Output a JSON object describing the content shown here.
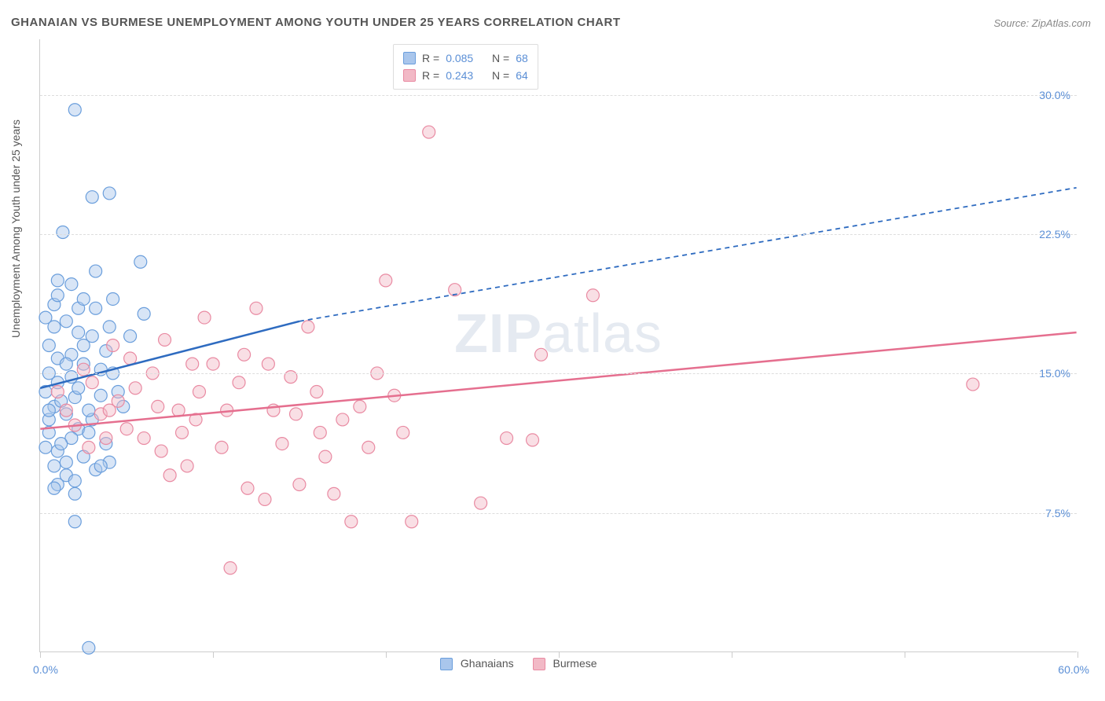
{
  "title": "GHANAIAN VS BURMESE UNEMPLOYMENT AMONG YOUTH UNDER 25 YEARS CORRELATION CHART",
  "source": "Source: ZipAtlas.com",
  "y_axis_label": "Unemployment Among Youth under 25 years",
  "watermark": {
    "bold": "ZIP",
    "light": "atlas"
  },
  "chart": {
    "type": "scatter",
    "xlim": [
      0,
      60
    ],
    "ylim": [
      0,
      33
    ],
    "x_ticks": [
      0,
      10,
      20,
      30,
      40,
      50,
      60
    ],
    "x_tick_labels": {
      "first": "0.0%",
      "last": "60.0%"
    },
    "y_gridlines": [
      7.5,
      15.0,
      22.5,
      30.0
    ],
    "y_tick_labels": [
      "7.5%",
      "15.0%",
      "22.5%",
      "30.0%"
    ],
    "background_color": "#ffffff",
    "grid_color": "#dddddd",
    "marker_radius": 8,
    "marker_opacity": 0.45,
    "series": [
      {
        "name": "Ghanaians",
        "fill": "#a9c6ec",
        "stroke": "#6a9edc",
        "R": "0.085",
        "N": "68",
        "trend": {
          "x1": 0,
          "y1": 14.2,
          "x2": 15,
          "y2": 17.8,
          "color": "#2e6bc0",
          "dash_from_x": 15,
          "dash_x2": 60,
          "dash_y2": 25.0
        },
        "points": [
          [
            2.0,
            29.2
          ],
          [
            3.0,
            24.5
          ],
          [
            4.0,
            24.7
          ],
          [
            1.3,
            22.6
          ],
          [
            5.8,
            21.0
          ],
          [
            1.0,
            20.0
          ],
          [
            3.2,
            20.5
          ],
          [
            0.8,
            18.7
          ],
          [
            2.2,
            18.5
          ],
          [
            1.5,
            17.8
          ],
          [
            4.2,
            19.0
          ],
          [
            6.0,
            18.2
          ],
          [
            0.5,
            16.5
          ],
          [
            1.8,
            16.0
          ],
          [
            2.5,
            15.5
          ],
          [
            3.5,
            15.2
          ],
          [
            1.0,
            14.5
          ],
          [
            0.3,
            14.0
          ],
          [
            2.0,
            13.7
          ],
          [
            4.5,
            14.0
          ],
          [
            0.8,
            13.2
          ],
          [
            1.5,
            12.8
          ],
          [
            3.0,
            12.5
          ],
          [
            2.2,
            12.0
          ],
          [
            0.5,
            11.8
          ],
          [
            1.8,
            11.5
          ],
          [
            3.8,
            11.2
          ],
          [
            0.3,
            11.0
          ],
          [
            1.0,
            10.8
          ],
          [
            2.5,
            10.5
          ],
          [
            0.8,
            10.0
          ],
          [
            4.0,
            10.2
          ],
          [
            1.5,
            9.5
          ],
          [
            3.2,
            9.8
          ],
          [
            2.0,
            9.2
          ],
          [
            0.5,
            12.5
          ],
          [
            1.2,
            13.5
          ],
          [
            2.8,
            13.0
          ],
          [
            3.5,
            13.8
          ],
          [
            4.8,
            13.2
          ],
          [
            1.8,
            14.8
          ],
          [
            2.5,
            16.5
          ],
          [
            3.0,
            17.0
          ],
          [
            1.0,
            15.8
          ],
          [
            4.2,
            15.0
          ],
          [
            2.0,
            7.0
          ],
          [
            2.8,
            0.2
          ],
          [
            0.5,
            15.0
          ],
          [
            1.5,
            15.5
          ],
          [
            3.8,
            16.2
          ],
          [
            5.2,
            17.0
          ],
          [
            0.8,
            17.5
          ],
          [
            2.2,
            17.2
          ],
          [
            1.0,
            19.2
          ],
          [
            0.3,
            18.0
          ],
          [
            1.8,
            19.8
          ],
          [
            2.5,
            19.0
          ],
          [
            3.2,
            18.5
          ],
          [
            4.0,
            17.5
          ],
          [
            0.5,
            13.0
          ],
          [
            1.2,
            11.2
          ],
          [
            2.8,
            11.8
          ],
          [
            3.5,
            10.0
          ],
          [
            1.0,
            9.0
          ],
          [
            2.0,
            8.5
          ],
          [
            0.8,
            8.8
          ],
          [
            1.5,
            10.2
          ],
          [
            2.2,
            14.2
          ]
        ]
      },
      {
        "name": "Burmese",
        "fill": "#f2b9c6",
        "stroke": "#e98aa2",
        "R": "0.243",
        "N": "64",
        "trend": {
          "x1": 0,
          "y1": 12.0,
          "x2": 60,
          "y2": 17.2,
          "color": "#e56f8f"
        },
        "points": [
          [
            22.5,
            28.0
          ],
          [
            20.0,
            20.0
          ],
          [
            24.0,
            19.5
          ],
          [
            32.0,
            19.2
          ],
          [
            54.0,
            14.4
          ],
          [
            29.0,
            16.0
          ],
          [
            27.0,
            11.5
          ],
          [
            28.5,
            11.4
          ],
          [
            25.5,
            8.0
          ],
          [
            21.5,
            7.0
          ],
          [
            18.0,
            7.0
          ],
          [
            19.0,
            11.0
          ],
          [
            17.0,
            8.5
          ],
          [
            15.0,
            9.0
          ],
          [
            13.0,
            8.2
          ],
          [
            11.0,
            4.5
          ],
          [
            12.0,
            8.8
          ],
          [
            10.5,
            11.0
          ],
          [
            9.0,
            12.5
          ],
          [
            8.0,
            13.0
          ],
          [
            7.5,
            9.5
          ],
          [
            6.5,
            15.0
          ],
          [
            5.5,
            14.2
          ],
          [
            4.5,
            13.5
          ],
          [
            3.5,
            12.8
          ],
          [
            2.8,
            11.0
          ],
          [
            2.0,
            12.2
          ],
          [
            1.5,
            13.0
          ],
          [
            1.0,
            14.0
          ],
          [
            3.0,
            14.5
          ],
          [
            4.0,
            13.0
          ],
          [
            5.0,
            12.0
          ],
          [
            6.0,
            11.5
          ],
          [
            7.0,
            10.8
          ],
          [
            8.5,
            10.0
          ],
          [
            9.5,
            18.0
          ],
          [
            10.0,
            15.5
          ],
          [
            11.5,
            14.5
          ],
          [
            12.5,
            18.5
          ],
          [
            13.5,
            13.0
          ],
          [
            14.0,
            11.2
          ],
          [
            14.5,
            14.8
          ],
          [
            15.5,
            17.5
          ],
          [
            16.5,
            10.5
          ],
          [
            16.0,
            14.0
          ],
          [
            17.5,
            12.5
          ],
          [
            18.5,
            13.2
          ],
          [
            19.5,
            15.0
          ],
          [
            20.5,
            13.8
          ],
          [
            21.0,
            11.8
          ],
          [
            3.8,
            11.5
          ],
          [
            5.2,
            15.8
          ],
          [
            6.8,
            13.2
          ],
          [
            8.2,
            11.8
          ],
          [
            9.2,
            14.0
          ],
          [
            10.8,
            13.0
          ],
          [
            11.8,
            16.0
          ],
          [
            13.2,
            15.5
          ],
          [
            14.8,
            12.8
          ],
          [
            16.2,
            11.8
          ],
          [
            2.5,
            15.2
          ],
          [
            4.2,
            16.5
          ],
          [
            7.2,
            16.8
          ],
          [
            8.8,
            15.5
          ]
        ]
      }
    ]
  },
  "legend_top": {
    "rows": [
      {
        "swatch_fill": "#a9c6ec",
        "swatch_stroke": "#6a9edc",
        "r_label": "R =",
        "r_val": "0.085",
        "n_label": "N =",
        "n_val": "68"
      },
      {
        "swatch_fill": "#f2b9c6",
        "swatch_stroke": "#e98aa2",
        "r_label": "R =",
        "r_val": "0.243",
        "n_label": "N =",
        "n_val": "64"
      }
    ]
  },
  "legend_bottom": {
    "items": [
      {
        "swatch_fill": "#a9c6ec",
        "swatch_stroke": "#6a9edc",
        "label": "Ghanaians"
      },
      {
        "swatch_fill": "#f2b9c6",
        "swatch_stroke": "#e98aa2",
        "label": "Burmese"
      }
    ]
  }
}
